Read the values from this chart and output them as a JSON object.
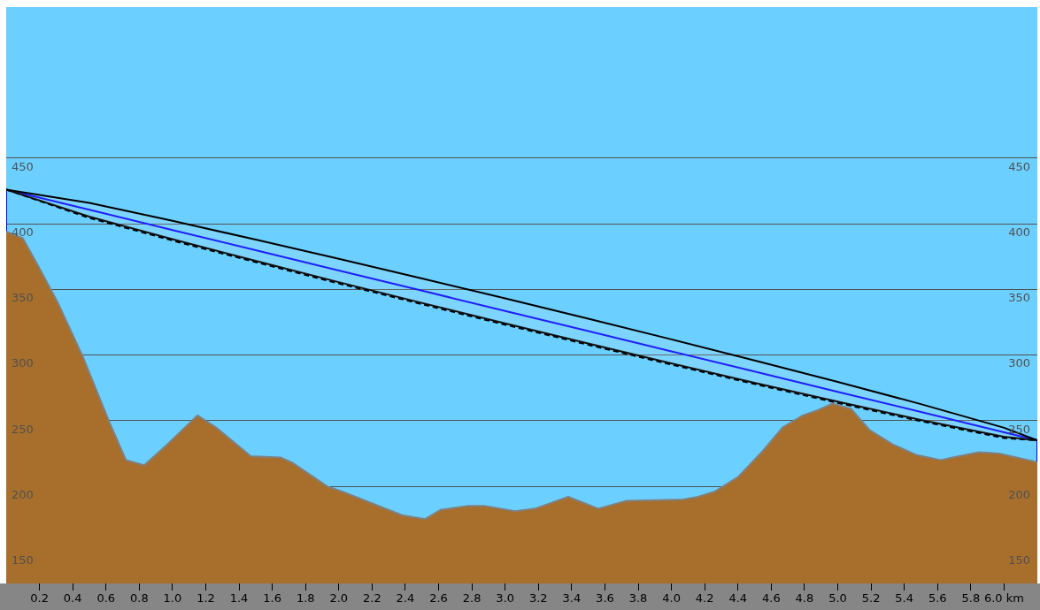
{
  "chart_data": {
    "type": "line",
    "xlim": [
      0,
      6.2
    ],
    "ylim": [
      126,
      565
    ],
    "y2lim": [
      126,
      565
    ],
    "xticks": [
      {
        "value": 0.2,
        "label": "0.2"
      },
      {
        "value": 0.4,
        "label": "0.4"
      },
      {
        "value": 0.6,
        "label": "0.6"
      },
      {
        "value": 0.8,
        "label": "0.8"
      },
      {
        "value": 1.0,
        "label": "1.0"
      },
      {
        "value": 1.2,
        "label": "1.2"
      },
      {
        "value": 1.4,
        "label": "1.4"
      },
      {
        "value": 1.6,
        "label": "1.6"
      },
      {
        "value": 1.8,
        "label": "1.8"
      },
      {
        "value": 2.0,
        "label": "2.0"
      },
      {
        "value": 2.2,
        "label": "2.2"
      },
      {
        "value": 2.4,
        "label": "2.4"
      },
      {
        "value": 2.6,
        "label": "2.6"
      },
      {
        "value": 2.8,
        "label": "2.8"
      },
      {
        "value": 3.0,
        "label": "3.0"
      },
      {
        "value": 3.2,
        "label": "3.2"
      },
      {
        "value": 3.4,
        "label": "3.4"
      },
      {
        "value": 3.6,
        "label": "3.6"
      },
      {
        "value": 3.8,
        "label": "3.8"
      },
      {
        "value": 4.0,
        "label": "4.0"
      },
      {
        "value": 4.2,
        "label": "4.2"
      },
      {
        "value": 4.4,
        "label": "4.4"
      },
      {
        "value": 4.6,
        "label": "4.6"
      },
      {
        "value": 4.8,
        "label": "4.8"
      },
      {
        "value": 5.0,
        "label": "5.0"
      },
      {
        "value": 5.2,
        "label": "5.2"
      },
      {
        "value": 5.4,
        "label": "5.4"
      },
      {
        "value": 5.6,
        "label": "5.6"
      },
      {
        "value": 5.8,
        "label": "5.8"
      },
      {
        "value": 6.0,
        "label": "6.0 km"
      }
    ],
    "yticks": [
      150,
      200,
      250,
      300,
      350,
      400,
      450
    ],
    "y2ticks": [
      150,
      200,
      250,
      300,
      350,
      400,
      450
    ],
    "grid": "y",
    "legend": false,
    "marker": "none",
    "series": [
      {
        "type": "area",
        "color": "#a86f2c",
        "x": [
          0,
          0.1,
          0.2,
          0.31,
          0.46,
          0.62,
          0.72,
          0.83,
          0.97,
          1.15,
          1.26,
          1.47,
          1.65,
          1.72,
          1.93,
          2.02,
          2.38,
          2.52,
          2.61,
          2.77,
          2.88,
          3.06,
          3.18,
          3.38,
          3.56,
          3.73,
          4.07,
          4.16,
          4.26,
          4.4,
          4.55,
          4.67,
          4.79,
          4.88,
          4.97,
          5.08,
          5.19,
          5.33,
          5.47,
          5.62,
          5.69,
          5.85,
          5.97,
          6.18,
          6.2
        ],
        "values": [
          394,
          389,
          366,
          340,
          299,
          249,
          220,
          216,
          232,
          254,
          245,
          223,
          222,
          218,
          200,
          196,
          178,
          175,
          182,
          185,
          185,
          181,
          183,
          192,
          183,
          189,
          190,
          192,
          196,
          207,
          227,
          245,
          254,
          258,
          263,
          259,
          243,
          232,
          224,
          220,
          222,
          226,
          225,
          219,
          218
        ]
      },
      {
        "type": "line",
        "color": "#0000ff",
        "x": [
          0,
          0.5,
          1,
          1.5,
          2,
          2.5,
          3,
          3.5,
          4,
          4.5,
          5,
          5.5,
          6,
          6.2
        ],
        "values": [
          426,
          410.6,
          395.2,
          379.8,
          364.4,
          349,
          333.6,
          318.2,
          302.8,
          287.4,
          272,
          256.6,
          241.2,
          235
        ],
        "upper": [
          426,
          415.8,
          402.2,
          387.9,
          373.3,
          358.3,
          343.1,
          327.6,
          311.9,
          295.9,
          279.5,
          262.6,
          244.6,
          235
        ],
        "lower": [
          426,
          405.4,
          388.2,
          371.7,
          355.5,
          339.7,
          324.1,
          308.8,
          293.7,
          278.9,
          264.5,
          250.6,
          237.8,
          235
        ]
      },
      {
        "type": "line",
        "color": "#000000",
        "line_style": "dashed",
        "x": [
          0,
          0.5,
          1,
          1.5,
          2,
          2.5,
          3,
          3.5,
          4,
          4.5,
          5,
          5.5,
          6,
          6.2
        ],
        "values": [
          426,
          404.4,
          387.2,
          370.7,
          354.5,
          338.7,
          323.1,
          307.8,
          292.7,
          277.9,
          263.5,
          249.6,
          236.8,
          235
        ]
      },
      {
        "type": "line",
        "color": "#0000ff",
        "x": [
          0,
          0
        ],
        "values": [
          394,
          426
        ]
      },
      {
        "type": "line",
        "color": "#0000ff",
        "x": [
          6.2,
          6.2
        ],
        "values": [
          218,
          235
        ]
      }
    ]
  }
}
